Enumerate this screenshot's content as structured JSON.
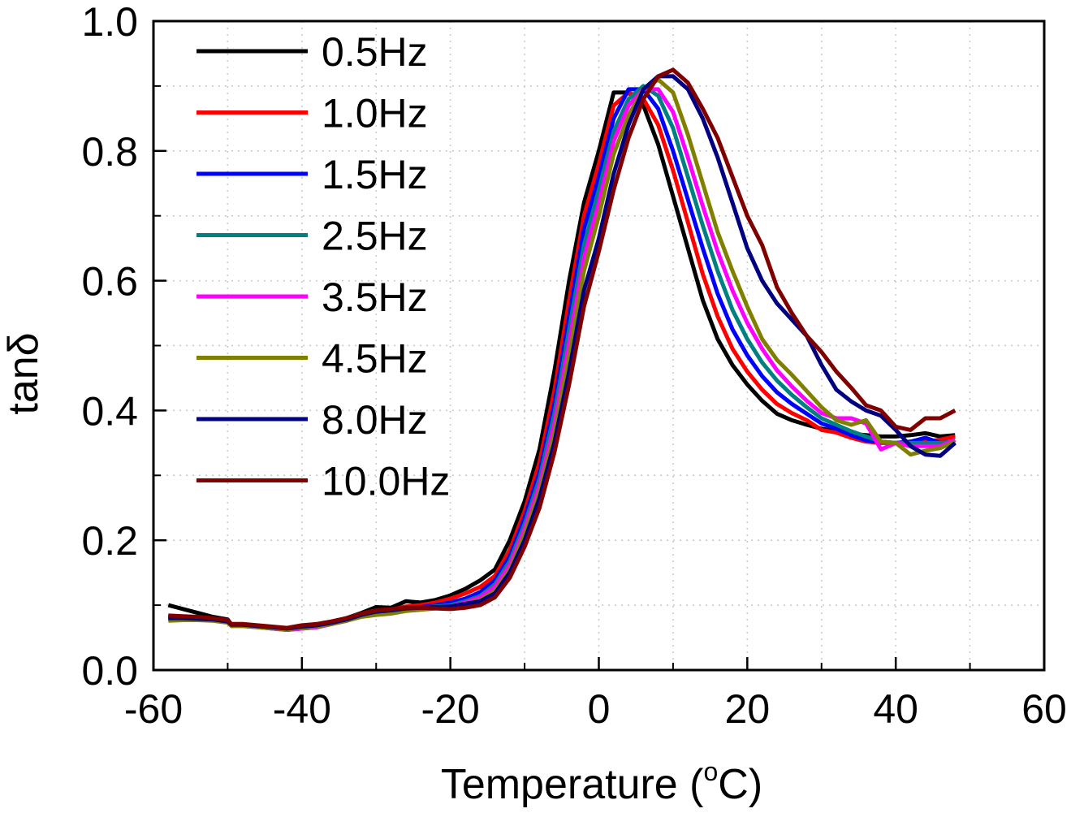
{
  "chart_data": {
    "type": "line",
    "title": "",
    "xlabel": "Temperature (°C)",
    "xlabel_main": "Temperature (",
    "xlabel_sup": "o",
    "xlabel_end": "C)",
    "ylabel": "tanδ",
    "xlim": [
      -60,
      60
    ],
    "ylim": [
      0.0,
      1.0
    ],
    "xticks": [
      -60,
      -40,
      -20,
      0,
      20,
      40,
      60
    ],
    "xtick_labels": [
      "-60",
      "-40",
      "-20",
      "0",
      "20",
      "40",
      "60"
    ],
    "xminor_ticks": [
      -50,
      -30,
      -10,
      10,
      30,
      50
    ],
    "yticks": [
      0.0,
      0.2,
      0.4,
      0.6,
      0.8,
      1.0
    ],
    "ytick_labels": [
      "0.0",
      "0.2",
      "0.4",
      "0.6",
      "0.8",
      "1.0"
    ],
    "yminor_ticks": [
      0.1,
      0.3,
      0.5,
      0.7,
      0.9
    ],
    "grid": true,
    "legend_position": "top-left",
    "x": [
      -58,
      -56,
      -54,
      -52,
      -50,
      -49.5,
      -48,
      -46,
      -44,
      -42,
      -40,
      -38,
      -36,
      -34,
      -32,
      -30,
      -28,
      -26,
      -24,
      -22,
      -20,
      -18,
      -16,
      -14,
      -12,
      -10,
      -8,
      -6,
      -4,
      -2,
      0,
      2,
      4,
      6,
      8,
      10,
      12,
      14,
      16,
      18,
      20,
      22,
      24,
      26,
      28,
      30,
      32,
      34,
      36,
      38,
      40,
      42,
      44,
      46,
      48
    ],
    "series": [
      {
        "name": "0.5Hz",
        "color": "#000000",
        "values": [
          0.1,
          0.094,
          0.088,
          0.082,
          0.078,
          0.07,
          0.07,
          0.068,
          0.066,
          0.064,
          0.068,
          0.07,
          0.074,
          0.08,
          0.088,
          0.097,
          0.096,
          0.106,
          0.104,
          0.108,
          0.115,
          0.125,
          0.138,
          0.155,
          0.2,
          0.26,
          0.34,
          0.46,
          0.6,
          0.72,
          0.8,
          0.89,
          0.89,
          0.87,
          0.81,
          0.73,
          0.65,
          0.57,
          0.51,
          0.47,
          0.44,
          0.415,
          0.395,
          0.385,
          0.378,
          0.372,
          0.368,
          0.364,
          0.362,
          0.36,
          0.36,
          0.362,
          0.365,
          0.36,
          0.362
        ]
      },
      {
        "name": "1.0Hz",
        "color": "#ff0000",
        "values": [
          0.084,
          0.082,
          0.081,
          0.08,
          0.076,
          0.069,
          0.07,
          0.068,
          0.066,
          0.064,
          0.068,
          0.07,
          0.073,
          0.078,
          0.086,
          0.092,
          0.093,
          0.098,
          0.1,
          0.104,
          0.11,
          0.118,
          0.128,
          0.145,
          0.185,
          0.245,
          0.32,
          0.43,
          0.57,
          0.7,
          0.78,
          0.87,
          0.89,
          0.88,
          0.84,
          0.77,
          0.69,
          0.61,
          0.545,
          0.495,
          0.46,
          0.432,
          0.41,
          0.396,
          0.385,
          0.37,
          0.366,
          0.358,
          0.352,
          0.35,
          0.35,
          0.352,
          0.352,
          0.355,
          0.36
        ]
      },
      {
        "name": "1.5Hz",
        "color": "#0000ff",
        "values": [
          0.082,
          0.081,
          0.08,
          0.079,
          0.075,
          0.068,
          0.069,
          0.067,
          0.064,
          0.062,
          0.064,
          0.066,
          0.071,
          0.076,
          0.084,
          0.09,
          0.092,
          0.096,
          0.097,
          0.1,
          0.104,
          0.11,
          0.12,
          0.138,
          0.175,
          0.235,
          0.305,
          0.41,
          0.545,
          0.68,
          0.76,
          0.85,
          0.895,
          0.895,
          0.865,
          0.8,
          0.725,
          0.65,
          0.58,
          0.525,
          0.485,
          0.453,
          0.428,
          0.41,
          0.395,
          0.38,
          0.372,
          0.362,
          0.354,
          0.352,
          0.35,
          0.352,
          0.358,
          0.35,
          0.352
        ]
      },
      {
        "name": "2.5Hz",
        "color": "#008080",
        "values": [
          0.08,
          0.08,
          0.079,
          0.078,
          0.074,
          0.068,
          0.069,
          0.067,
          0.065,
          0.063,
          0.065,
          0.067,
          0.072,
          0.077,
          0.084,
          0.088,
          0.09,
          0.094,
          0.096,
          0.098,
          0.1,
          0.106,
          0.114,
          0.132,
          0.168,
          0.225,
          0.295,
          0.395,
          0.525,
          0.655,
          0.74,
          0.83,
          0.88,
          0.9,
          0.885,
          0.835,
          0.76,
          0.685,
          0.615,
          0.555,
          0.51,
          0.474,
          0.446,
          0.424,
          0.405,
          0.388,
          0.378,
          0.368,
          0.36,
          0.352,
          0.35,
          0.35,
          0.35,
          0.35,
          0.352
        ]
      },
      {
        "name": "3.5Hz",
        "color": "#ff00ff",
        "values": [
          0.079,
          0.079,
          0.078,
          0.077,
          0.074,
          0.068,
          0.068,
          0.066,
          0.064,
          0.062,
          0.064,
          0.066,
          0.071,
          0.076,
          0.083,
          0.086,
          0.088,
          0.092,
          0.094,
          0.096,
          0.098,
          0.104,
          0.112,
          0.128,
          0.162,
          0.218,
          0.285,
          0.38,
          0.505,
          0.635,
          0.72,
          0.815,
          0.87,
          0.895,
          0.895,
          0.86,
          0.79,
          0.715,
          0.645,
          0.585,
          0.535,
          0.495,
          0.462,
          0.437,
          0.415,
          0.396,
          0.388,
          0.388,
          0.38,
          0.34,
          0.35,
          0.345,
          0.345,
          0.345,
          0.355
        ]
      },
      {
        "name": "4.5Hz",
        "color": "#808000",
        "values": [
          0.076,
          0.077,
          0.077,
          0.076,
          0.073,
          0.068,
          0.068,
          0.066,
          0.064,
          0.063,
          0.065,
          0.067,
          0.071,
          0.076,
          0.082,
          0.085,
          0.087,
          0.091,
          0.093,
          0.095,
          0.097,
          0.102,
          0.108,
          0.122,
          0.155,
          0.21,
          0.275,
          0.365,
          0.485,
          0.615,
          0.7,
          0.795,
          0.855,
          0.895,
          0.91,
          0.89,
          0.825,
          0.75,
          0.675,
          0.615,
          0.56,
          0.51,
          0.478,
          0.455,
          0.43,
          0.405,
          0.385,
          0.378,
          0.385,
          0.352,
          0.35,
          0.332,
          0.338,
          0.342,
          0.352
        ]
      },
      {
        "name": "8.0Hz",
        "color": "#000080",
        "values": [
          0.08,
          0.08,
          0.079,
          0.078,
          0.075,
          0.07,
          0.07,
          0.068,
          0.066,
          0.064,
          0.067,
          0.069,
          0.073,
          0.078,
          0.085,
          0.09,
          0.092,
          0.095,
          0.096,
          0.097,
          0.098,
          0.102,
          0.106,
          0.118,
          0.15,
          0.2,
          0.265,
          0.35,
          0.46,
          0.585,
          0.665,
          0.765,
          0.84,
          0.895,
          0.915,
          0.915,
          0.895,
          0.85,
          0.79,
          0.72,
          0.65,
          0.6,
          0.565,
          0.54,
          0.515,
          0.47,
          0.432,
          0.414,
          0.4,
          0.392,
          0.37,
          0.345,
          0.332,
          0.33,
          0.35
        ]
      },
      {
        "name": "10.0Hz",
        "color": "#800000",
        "values": [
          0.084,
          0.083,
          0.082,
          0.08,
          0.077,
          0.071,
          0.071,
          0.069,
          0.067,
          0.065,
          0.069,
          0.071,
          0.075,
          0.08,
          0.087,
          0.092,
          0.094,
          0.096,
          0.096,
          0.095,
          0.094,
          0.096,
          0.1,
          0.112,
          0.142,
          0.19,
          0.25,
          0.335,
          0.44,
          0.56,
          0.645,
          0.74,
          0.82,
          0.88,
          0.915,
          0.925,
          0.905,
          0.865,
          0.82,
          0.76,
          0.7,
          0.655,
          0.59,
          0.55,
          0.515,
          0.49,
          0.46,
          0.435,
          0.408,
          0.4,
          0.375,
          0.37,
          0.388,
          0.388,
          0.4
        ]
      }
    ]
  }
}
